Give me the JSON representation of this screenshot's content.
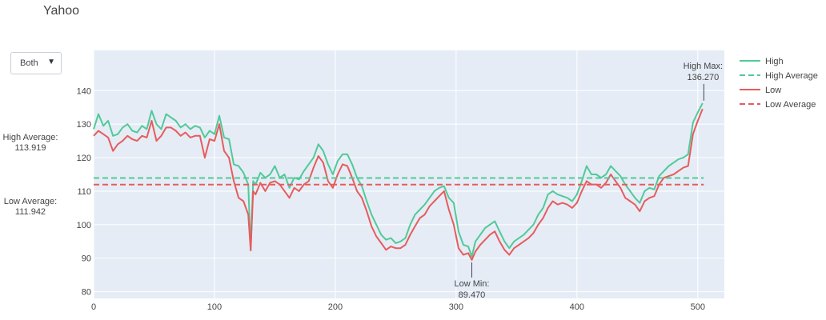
{
  "title": "Yahoo",
  "dropdown": {
    "selected": "Both"
  },
  "side_annotations": {
    "high_avg_label": "High Average:",
    "high_avg_value": "113.919",
    "low_avg_label": "Low Average:",
    "low_avg_value": "111.942"
  },
  "plot_annotations": {
    "high_max_label": "High Max:",
    "high_max_value": "136.270",
    "low_min_label": "Low Min:",
    "low_min_value": "89.470"
  },
  "colors": {
    "high": "#52c998",
    "low": "#e65c5c",
    "plot_bg": "#e5ecf6",
    "grid": "#ffffff"
  },
  "chart_data": {
    "type": "line",
    "title": "Yahoo",
    "xlabel": "",
    "ylabel": "",
    "xlim": [
      0,
      522
    ],
    "ylim": [
      78,
      152
    ],
    "xticks": [
      0,
      100,
      200,
      300,
      400,
      500
    ],
    "yticks": [
      80,
      90,
      100,
      110,
      120,
      130,
      140
    ],
    "grid": true,
    "legend_position": "right",
    "series": [
      {
        "name": "High",
        "style": "solid",
        "x": [
          0,
          4,
          8,
          12,
          16,
          20,
          24,
          28,
          32,
          36,
          40,
          44,
          48,
          52,
          56,
          60,
          64,
          68,
          72,
          76,
          80,
          84,
          88,
          92,
          96,
          100,
          104,
          108,
          112,
          116,
          120,
          124,
          128,
          130,
          132,
          134,
          138,
          142,
          146,
          150,
          154,
          158,
          162,
          166,
          170,
          174,
          178,
          182,
          186,
          190,
          194,
          198,
          202,
          206,
          210,
          214,
          218,
          222,
          226,
          230,
          234,
          238,
          242,
          246,
          250,
          254,
          258,
          262,
          266,
          270,
          274,
          278,
          282,
          286,
          290,
          294,
          298,
          302,
          306,
          310,
          313,
          316,
          320,
          324,
          328,
          332,
          336,
          340,
          344,
          348,
          352,
          356,
          360,
          364,
          368,
          372,
          376,
          380,
          384,
          388,
          392,
          396,
          400,
          404,
          408,
          412,
          416,
          420,
          424,
          428,
          432,
          436,
          440,
          444,
          448,
          452,
          456,
          460,
          464,
          468,
          472,
          476,
          480,
          484,
          488,
          492,
          496,
          500,
          504
        ],
        "y": [
          128.5,
          133,
          129.5,
          131,
          126.5,
          127,
          129,
          130,
          128,
          127.5,
          129.5,
          128.5,
          134,
          130,
          128.5,
          133,
          132,
          131,
          129,
          130,
          128.5,
          129.5,
          129,
          126,
          128,
          127,
          132.5,
          126,
          125.5,
          118,
          117.5,
          115.5,
          112,
          92.5,
          113,
          112,
          115.5,
          114,
          115,
          117.5,
          114,
          115,
          111,
          114,
          113.5,
          116,
          118,
          120,
          124,
          122,
          118,
          115,
          119,
          121,
          121,
          118,
          114,
          111.5,
          107,
          103,
          100,
          97,
          95.5,
          96,
          94.5,
          95,
          96,
          100,
          103,
          104.5,
          106,
          108,
          110,
          111,
          111.5,
          108,
          106.5,
          98,
          94,
          93.5,
          90.5,
          95,
          97,
          99,
          100,
          101,
          98,
          95,
          93,
          95,
          96,
          97,
          98.5,
          100,
          103,
          105,
          109,
          110,
          109,
          108.5,
          108,
          107,
          109,
          113,
          117.5,
          115,
          115,
          114,
          115,
          117.5,
          116,
          114.5,
          112,
          110,
          108,
          106.5,
          110,
          111,
          110.5,
          114.5,
          116,
          117.5,
          118.5,
          119.5,
          120,
          121,
          130.5,
          133.5,
          136.27
        ]
      },
      {
        "name": "High Average",
        "style": "dash",
        "x": [
          0,
          505
        ],
        "y": [
          113.919,
          113.919
        ]
      },
      {
        "name": "Low",
        "style": "solid",
        "x": [
          0,
          4,
          8,
          12,
          16,
          20,
          24,
          28,
          32,
          36,
          40,
          44,
          48,
          52,
          56,
          60,
          64,
          68,
          72,
          76,
          80,
          84,
          88,
          92,
          96,
          100,
          104,
          108,
          112,
          116,
          120,
          124,
          128,
          130,
          132,
          134,
          138,
          142,
          146,
          150,
          154,
          158,
          162,
          166,
          170,
          174,
          178,
          182,
          186,
          190,
          194,
          198,
          202,
          206,
          210,
          214,
          218,
          222,
          226,
          230,
          234,
          238,
          242,
          246,
          250,
          254,
          258,
          262,
          266,
          270,
          274,
          278,
          282,
          286,
          290,
          294,
          298,
          302,
          306,
          310,
          313,
          316,
          320,
          324,
          328,
          332,
          336,
          340,
          344,
          348,
          352,
          356,
          360,
          364,
          368,
          372,
          376,
          380,
          384,
          388,
          392,
          396,
          400,
          404,
          408,
          412,
          416,
          420,
          424,
          428,
          432,
          436,
          440,
          444,
          448,
          452,
          456,
          460,
          464,
          468,
          472,
          476,
          480,
          484,
          488,
          492,
          496,
          500,
          504
        ],
        "y": [
          126.5,
          128,
          127,
          126,
          122,
          124,
          125,
          126.5,
          125.5,
          125,
          126.5,
          126,
          131,
          125,
          126.5,
          129,
          129,
          128,
          126.5,
          127.5,
          126,
          126.5,
          126.5,
          120,
          125.5,
          125,
          130,
          122,
          120,
          113,
          108,
          107,
          103,
          92.3,
          110,
          109,
          112.5,
          110,
          112.5,
          113,
          112,
          110,
          108,
          111,
          110,
          112,
          113,
          117,
          120.5,
          118.5,
          113,
          111,
          115,
          118,
          117.5,
          114,
          110,
          108,
          104,
          99.5,
          96.5,
          94.5,
          92.5,
          93.5,
          93,
          93,
          94,
          97,
          99.5,
          102,
          103,
          105.5,
          107,
          108.5,
          110,
          104.5,
          100,
          93,
          91,
          91.5,
          89.47,
          92,
          94,
          95.5,
          97,
          98,
          95,
          92.5,
          91,
          93,
          94,
          95,
          96,
          97.5,
          100,
          102,
          105,
          107,
          106,
          106.5,
          106,
          105,
          106.5,
          110,
          113,
          112,
          112,
          111,
          112.5,
          115,
          113,
          111,
          108,
          107,
          106,
          104,
          107,
          108,
          108.5,
          112,
          114,
          114.5,
          115,
          116,
          117,
          117.5,
          127,
          131,
          134.5
        ]
      },
      {
        "name": "Low Average",
        "style": "dash",
        "x": [
          0,
          505
        ],
        "y": [
          111.942,
          111.942
        ]
      }
    ],
    "annotations": [
      {
        "text": "High Max: 136.270",
        "x": 505,
        "y": 136.27
      },
      {
        "text": "Low Min: 89.470",
        "x": 313,
        "y": 89.47
      },
      {
        "text": "High Average: 113.919",
        "y": 113.919
      },
      {
        "text": "Low Average: 111.942",
        "y": 111.942
      }
    ]
  }
}
